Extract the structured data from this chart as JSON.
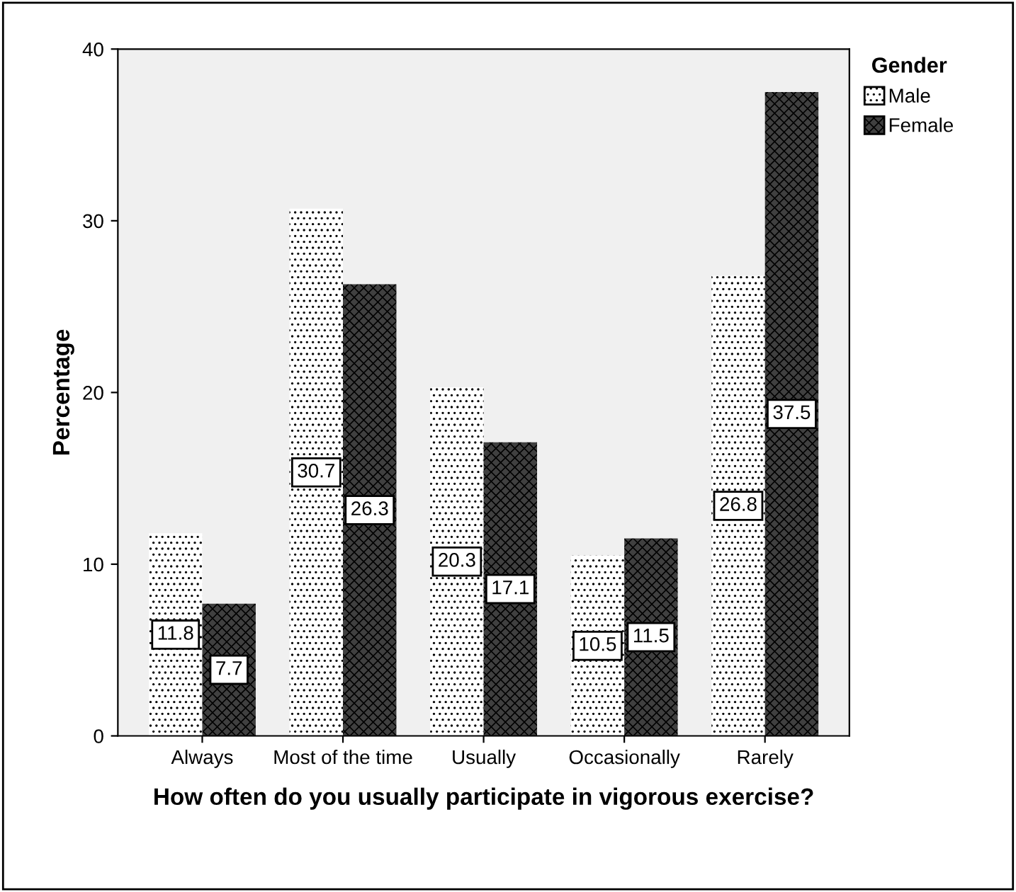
{
  "chart_data": {
    "type": "bar",
    "xlabel": "How often do you usually participate in vigorous exercise?",
    "ylabel": "Percentage",
    "legend_title": "Gender",
    "categories": [
      "Always",
      "Most of the time",
      "Usually",
      "Occasionally",
      "Rarely"
    ],
    "series": [
      {
        "name": "Male",
        "color": "#ffffff",
        "values": [
          11.8,
          30.7,
          20.3,
          10.5,
          26.8
        ]
      },
      {
        "name": "Female",
        "color": "#404040",
        "values": [
          7.7,
          26.3,
          17.1,
          11.5,
          37.5
        ]
      }
    ],
    "ylim": [
      0,
      40
    ],
    "yticks": [
      0,
      10,
      20,
      30,
      40
    ],
    "grid": false,
    "legend": "top right",
    "data_labels": true
  }
}
